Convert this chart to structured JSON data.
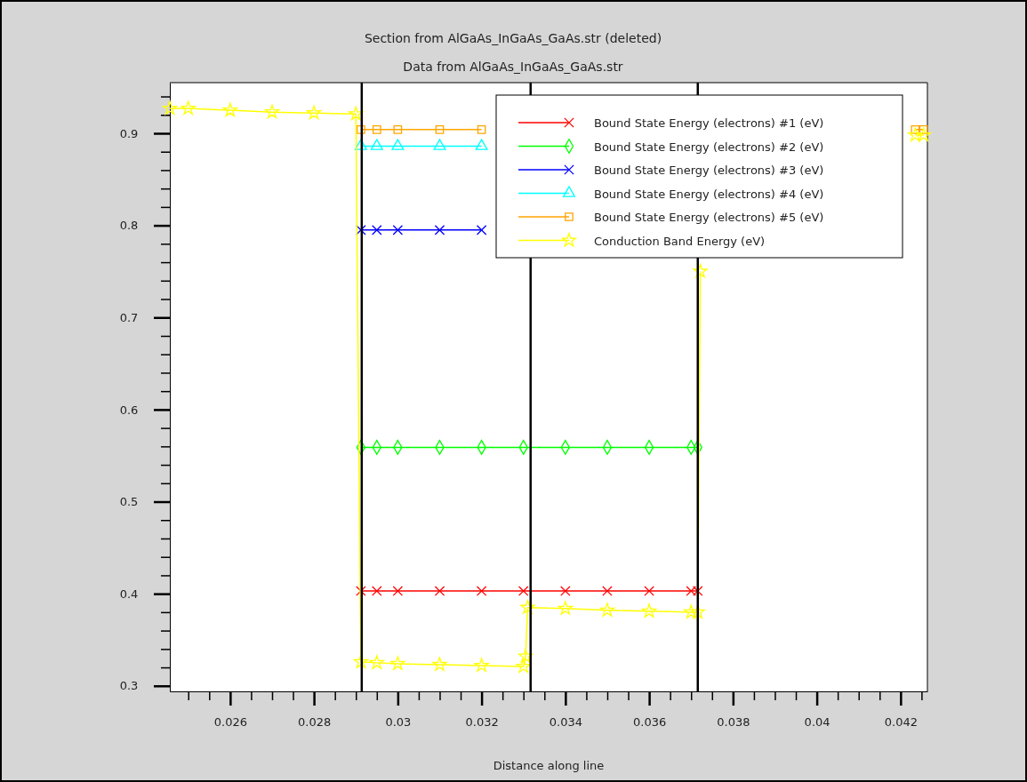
{
  "chart_data": {
    "type": "line",
    "title": "Section from AlGaAs_InGaAs_GaAs.str (deleted)",
    "subtitle": "Data from AlGaAs_InGaAs_GaAs.str",
    "xlabel": "Distance along line",
    "xlim": [
      0.02456,
      0.04264
    ],
    "ylim": [
      0.294,
      0.955
    ],
    "xticks": [
      {
        "value": 0.025,
        "label": null
      },
      {
        "value": 0.0255,
        "label": null
      },
      {
        "value": 0.026,
        "label": "0.026"
      },
      {
        "value": 0.0265,
        "label": null
      },
      {
        "value": 0.027,
        "label": null
      },
      {
        "value": 0.0275,
        "label": null
      },
      {
        "value": 0.028,
        "label": "0.028"
      },
      {
        "value": 0.0285,
        "label": null
      },
      {
        "value": 0.029,
        "label": null
      },
      {
        "value": 0.0295,
        "label": null
      },
      {
        "value": 0.03,
        "label": "0.03"
      },
      {
        "value": 0.0305,
        "label": null
      },
      {
        "value": 0.031,
        "label": null
      },
      {
        "value": 0.0315,
        "label": null
      },
      {
        "value": 0.032,
        "label": "0.032"
      },
      {
        "value": 0.0325,
        "label": null
      },
      {
        "value": 0.033,
        "label": null
      },
      {
        "value": 0.0335,
        "label": null
      },
      {
        "value": 0.034,
        "label": "0.034"
      },
      {
        "value": 0.0345,
        "label": null
      },
      {
        "value": 0.035,
        "label": null
      },
      {
        "value": 0.0355,
        "label": null
      },
      {
        "value": 0.036,
        "label": "0.036"
      },
      {
        "value": 0.0365,
        "label": null
      },
      {
        "value": 0.037,
        "label": null
      },
      {
        "value": 0.0375,
        "label": null
      },
      {
        "value": 0.038,
        "label": "0.038"
      },
      {
        "value": 0.0385,
        "label": null
      },
      {
        "value": 0.039,
        "label": null
      },
      {
        "value": 0.0395,
        "label": null
      },
      {
        "value": 0.04,
        "label": "0.04"
      },
      {
        "value": 0.0405,
        "label": null
      },
      {
        "value": 0.041,
        "label": null
      },
      {
        "value": 0.0415,
        "label": null
      },
      {
        "value": 0.042,
        "label": "0.042"
      },
      {
        "value": 0.0425,
        "label": null
      }
    ],
    "yticks": [
      {
        "value": 0.3,
        "label": "0.3"
      },
      {
        "value": 0.32,
        "label": null
      },
      {
        "value": 0.34,
        "label": null
      },
      {
        "value": 0.36,
        "label": null
      },
      {
        "value": 0.38,
        "label": null
      },
      {
        "value": 0.4,
        "label": "0.4"
      },
      {
        "value": 0.42,
        "label": null
      },
      {
        "value": 0.44,
        "label": null
      },
      {
        "value": 0.46,
        "label": null
      },
      {
        "value": 0.48,
        "label": null
      },
      {
        "value": 0.5,
        "label": "0.5"
      },
      {
        "value": 0.52,
        "label": null
      },
      {
        "value": 0.54,
        "label": null
      },
      {
        "value": 0.56,
        "label": null
      },
      {
        "value": 0.58,
        "label": null
      },
      {
        "value": 0.6,
        "label": "0.6"
      },
      {
        "value": 0.62,
        "label": null
      },
      {
        "value": 0.64,
        "label": null
      },
      {
        "value": 0.66,
        "label": null
      },
      {
        "value": 0.68,
        "label": null
      },
      {
        "value": 0.7,
        "label": "0.7"
      },
      {
        "value": 0.72,
        "label": null
      },
      {
        "value": 0.74,
        "label": null
      },
      {
        "value": 0.76,
        "label": null
      },
      {
        "value": 0.78,
        "label": null
      },
      {
        "value": 0.8,
        "label": "0.8"
      },
      {
        "value": 0.82,
        "label": null
      },
      {
        "value": 0.84,
        "label": null
      },
      {
        "value": 0.86,
        "label": null
      },
      {
        "value": 0.88,
        "label": null
      },
      {
        "value": 0.9,
        "label": "0.9"
      },
      {
        "value": 0.92,
        "label": null
      },
      {
        "value": 0.94,
        "label": null
      }
    ],
    "legend": "top right",
    "line_style": "solid",
    "ref_lines": [
      {
        "axis": "x",
        "value": 0.02914,
        "color": "#000000"
      },
      {
        "axis": "x",
        "value": 0.03317,
        "color": "#000000"
      },
      {
        "axis": "x",
        "value": 0.03716,
        "color": "#000000"
      }
    ],
    "series": [
      {
        "name": "Bound State Energy (electrons) #1 (eV)",
        "color": "#ff0000",
        "marker": "cross",
        "x": [
          0.02912,
          0.0295,
          0.03,
          0.031,
          0.032,
          0.033,
          0.034,
          0.035,
          0.036,
          0.037,
          0.03716
        ],
        "values": [
          0.403,
          0.403,
          0.403,
          0.403,
          0.403,
          0.403,
          0.403,
          0.403,
          0.403,
          0.403,
          0.403
        ]
      },
      {
        "name": "Bound State Energy (electrons) #2 (eV)",
        "color": "#00ff00",
        "marker": "diamond",
        "x": [
          0.02912,
          0.0295,
          0.03,
          0.031,
          0.032,
          0.033,
          0.034,
          0.035,
          0.036,
          0.037,
          0.03716
        ],
        "values": [
          0.559,
          0.559,
          0.559,
          0.559,
          0.559,
          0.559,
          0.559,
          0.559,
          0.559,
          0.559,
          0.559
        ]
      },
      {
        "name": "Bound State Energy (electrons) #3 (eV)",
        "color": "#0000ff",
        "marker": "cross",
        "x": [
          0.02912,
          0.0295,
          0.03,
          0.031,
          0.032
        ],
        "values": [
          0.795,
          0.795,
          0.795,
          0.795,
          0.795
        ]
      },
      {
        "name": "Bound State Energy (electrons) #4 (eV)",
        "color": "#00ffff",
        "marker": "triangle",
        "x": [
          0.02912,
          0.0295,
          0.03,
          0.031,
          0.032
        ],
        "values": [
          0.886,
          0.886,
          0.886,
          0.886,
          0.886
        ]
      },
      {
        "name": "Bound State Energy (electrons) #5 (eV)",
        "color": "#ffa500",
        "marker": "square",
        "x": [
          0.02912,
          0.0295,
          0.03,
          0.031,
          0.032,
          0.0327,
          0.04235,
          0.04255
        ],
        "values": [
          0.904,
          0.904,
          0.904,
          0.904,
          0.904,
          null,
          0.904,
          0.904
        ]
      },
      {
        "name": "Conduction Band Energy (eV)",
        "color": "#ffff00",
        "marker": "star",
        "x": [
          0.02456,
          0.025,
          0.026,
          0.027,
          0.028,
          0.029,
          0.02912,
          0.0295,
          0.03,
          0.031,
          0.032,
          0.033,
          0.03305,
          0.0331,
          0.034,
          0.035,
          0.036,
          0.037,
          0.03716,
          0.03722,
          0.03725,
          0.04235,
          0.04255
        ],
        "values": [
          0.927,
          0.927,
          0.925,
          0.923,
          0.922,
          0.921,
          0.326,
          0.325,
          0.324,
          0.323,
          0.322,
          0.321,
          0.332,
          0.385,
          0.384,
          0.382,
          0.381,
          0.38,
          0.38,
          0.75,
          null,
          0.898,
          0.898
        ]
      }
    ]
  }
}
